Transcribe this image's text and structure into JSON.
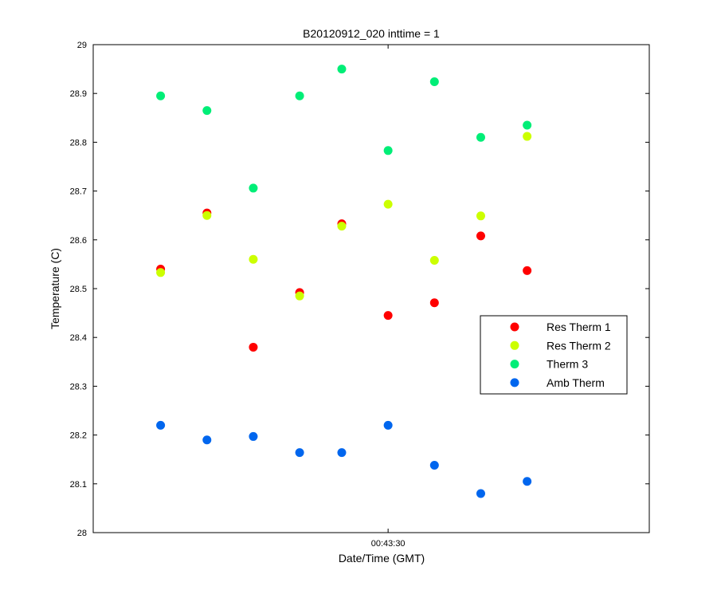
{
  "chart_data": {
    "type": "scatter",
    "title": "B20120912_020 inttime = 1",
    "xlabel": "Date/Time (GMT)",
    "ylabel": "Temperature (C)",
    "ylim": [
      28,
      29
    ],
    "yticks": [
      "28",
      "28.1",
      "28.2",
      "28.3",
      "28.4",
      "28.5",
      "28.6",
      "28.7",
      "28.8",
      "28.9",
      "29"
    ],
    "xticks": [
      "00:43:30"
    ],
    "xlim": [
      "00:42:55",
      "00:44:01"
    ],
    "x": [
      "00:43:03",
      "00:43:08.5",
      "00:43:14",
      "00:43:19.5",
      "00:43:24.5",
      "00:43:30",
      "00:43:35.5",
      "00:43:41",
      "00:43:46.5"
    ],
    "grid": false,
    "legend_position": "right",
    "series": [
      {
        "name": "Res Therm 1",
        "color": "#ff0000",
        "values": [
          28.54,
          28.655,
          28.38,
          28.492,
          28.633,
          28.445,
          28.471,
          28.608,
          28.537
        ]
      },
      {
        "name": "Res Therm 2",
        "color": "#ccff00",
        "values": [
          28.533,
          28.65,
          28.56,
          28.485,
          28.628,
          28.673,
          28.558,
          28.649,
          28.812
        ]
      },
      {
        "name": "Therm 3",
        "color": "#00ee77",
        "values": [
          28.895,
          28.865,
          28.706,
          28.895,
          28.95,
          28.783,
          28.924,
          28.81,
          28.835
        ]
      },
      {
        "name": "Amb Therm",
        "color": "#0066ee",
        "values": [
          28.22,
          28.19,
          28.197,
          28.164,
          28.164,
          28.22,
          28.138,
          28.08,
          28.105
        ]
      }
    ]
  }
}
